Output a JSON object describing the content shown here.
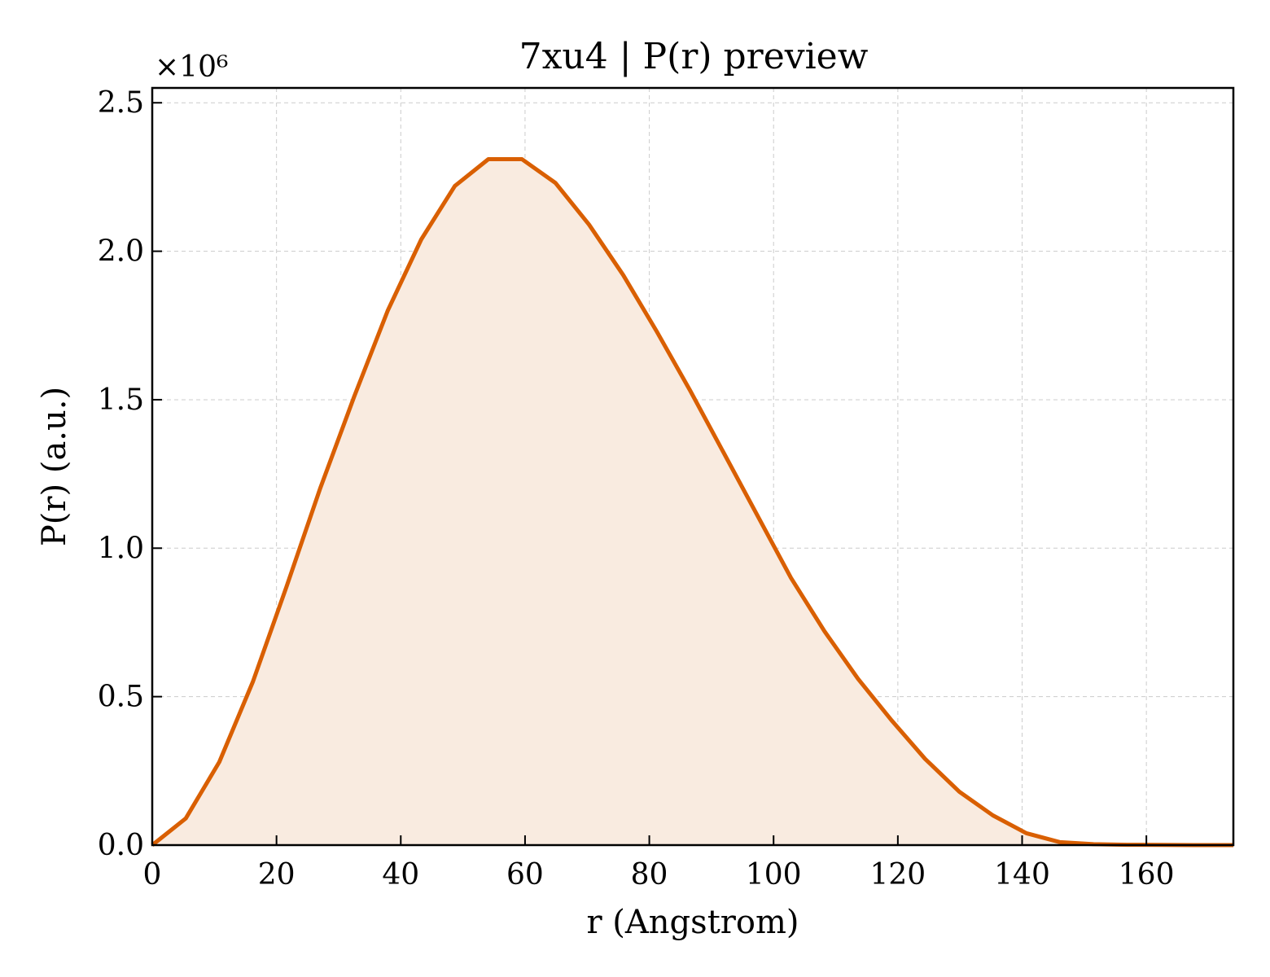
{
  "chart_data": {
    "type": "area",
    "title": "7xu4 | P(r) preview",
    "xlabel": "r (Angstrom)",
    "ylabel": "P(r) (a.u.)",
    "y_multiplier_label": "×10⁶",
    "y_scale": 1000000,
    "xlim": [
      0,
      174
    ],
    "ylim": [
      0,
      2.55
    ],
    "xticks": [
      0,
      20,
      40,
      60,
      80,
      100,
      120,
      140,
      160
    ],
    "yticks": [
      0.0,
      0.5,
      1.0,
      1.5,
      2.0,
      2.5
    ],
    "grid": true,
    "color": "#d95f02",
    "fill_color": "#f9ebe0",
    "series": [
      {
        "x": [
          0,
          5.4,
          10.8,
          16.2,
          21.6,
          27.0,
          32.5,
          37.9,
          43.3,
          48.7,
          54.1,
          59.5,
          64.9,
          70.3,
          75.8,
          81.2,
          86.6,
          92.0,
          97.4,
          102.8,
          108.2,
          113.6,
          119.0,
          124.4,
          129.9,
          135.3,
          140.7,
          146.1,
          151.5,
          156.9,
          162.3,
          167.7,
          174.0
        ],
        "y": [
          0.0,
          0.09,
          0.28,
          0.55,
          0.87,
          1.2,
          1.51,
          1.8,
          2.04,
          2.22,
          2.31,
          2.31,
          2.23,
          2.09,
          1.92,
          1.73,
          1.53,
          1.32,
          1.11,
          0.9,
          0.72,
          0.56,
          0.42,
          0.29,
          0.18,
          0.1,
          0.04,
          0.01,
          0.003,
          0.001,
          0.0005,
          0.0,
          0.0
        ]
      }
    ]
  }
}
